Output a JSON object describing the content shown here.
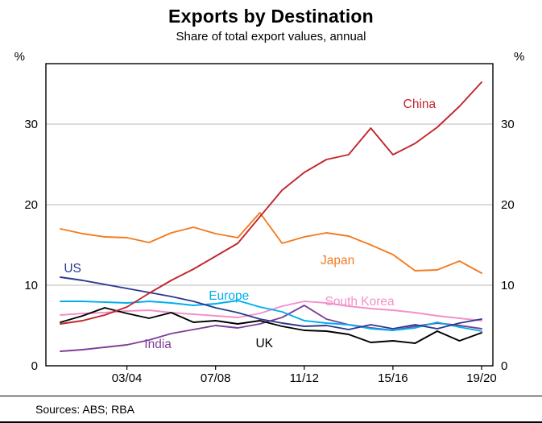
{
  "header": {
    "title": "Exports by Destination",
    "subtitle": "Share of total export values, annual"
  },
  "footer": {
    "sources": "Sources: ABS; RBA"
  },
  "chart_data": {
    "type": "line",
    "title": "Exports by Destination",
    "subtitle": "Share of total export values, annual",
    "unit_left": "%",
    "unit_right": "%",
    "ylim": [
      0,
      37.5
    ],
    "yticks": [
      0,
      10,
      20,
      30
    ],
    "grid": true,
    "grid_color": "#b9b9b9",
    "axis_color": "#000000",
    "x": [
      "00/01",
      "01/02",
      "02/03",
      "03/04",
      "04/05",
      "05/06",
      "06/07",
      "07/08",
      "08/09",
      "09/10",
      "10/11",
      "11/12",
      "12/13",
      "13/14",
      "14/15",
      "15/16",
      "16/17",
      "17/18",
      "18/19",
      "19/20"
    ],
    "x_tick_labels": [
      "03/04",
      "07/08",
      "11/12",
      "15/16",
      "19/20"
    ],
    "x_tick_indices": [
      3,
      7,
      11,
      15,
      19
    ],
    "legend_position": "inline-labels",
    "series": [
      {
        "name": "South Korea",
        "color": "#f290c9",
        "values": [
          6.3,
          6.5,
          6.6,
          6.8,
          6.9,
          6.6,
          6.4,
          6.2,
          6.0,
          6.5,
          7.4,
          8.0,
          7.8,
          7.4,
          7.1,
          6.9,
          6.6,
          6.2,
          5.9,
          5.6
        ],
        "label_pos": {
          "i": 13.5,
          "v": 7.5
        }
      },
      {
        "name": "India",
        "color": "#7d3f98",
        "values": [
          1.8,
          2.0,
          2.3,
          2.6,
          3.2,
          4.0,
          4.5,
          5.0,
          4.7,
          5.2,
          6.0,
          7.5,
          5.8,
          5.1,
          4.7,
          4.4,
          4.9,
          5.3,
          5.0,
          4.6
        ],
        "label_pos": {
          "i": 4.4,
          "v": 2.2
        }
      },
      {
        "name": "Europe",
        "color": "#00aeef",
        "values": [
          8.0,
          8.0,
          7.9,
          7.8,
          8.0,
          7.8,
          7.5,
          7.7,
          8.1,
          7.3,
          6.7,
          5.6,
          5.3,
          5.1,
          4.6,
          4.4,
          4.7,
          5.4,
          4.8,
          4.3
        ],
        "label_pos": {
          "i": 7.6,
          "v": 8.2
        }
      },
      {
        "name": "US",
        "color": "#2b3990",
        "values": [
          11.0,
          10.6,
          10.1,
          9.6,
          9.1,
          8.6,
          8.0,
          7.2,
          6.6,
          5.8,
          5.3,
          4.9,
          5.0,
          4.5,
          5.1,
          4.6,
          5.1,
          4.6,
          5.3,
          5.8
        ],
        "label_pos": {
          "i": 0.55,
          "v": 11.6
        }
      },
      {
        "name": "UK",
        "color": "#000000",
        "values": [
          5.4,
          6.2,
          7.2,
          6.5,
          5.9,
          6.6,
          5.4,
          5.6,
          5.2,
          5.6,
          4.9,
          4.4,
          4.3,
          3.9,
          2.9,
          3.1,
          2.8,
          4.3,
          3.1,
          4.1
        ],
        "label_pos": {
          "i": 9.2,
          "v": 2.3
        }
      },
      {
        "name": "Japan",
        "color": "#f47b20",
        "values": [
          17.0,
          16.4,
          16.0,
          15.9,
          15.3,
          16.5,
          17.2,
          16.4,
          15.9,
          19.0,
          15.2,
          16.0,
          16.5,
          16.1,
          15.0,
          13.8,
          11.8,
          11.9,
          13.0,
          11.5
        ],
        "label_pos": {
          "i": 12.5,
          "v": 12.6
        }
      },
      {
        "name": "China",
        "color": "#c1272d",
        "values": [
          5.2,
          5.6,
          6.3,
          7.3,
          9.0,
          10.6,
          12.0,
          13.6,
          15.2,
          18.5,
          21.8,
          24.0,
          25.6,
          26.2,
          29.5,
          26.2,
          27.6,
          29.6,
          32.2,
          35.2
        ],
        "label_pos": {
          "i": 16.2,
          "v": 32.0
        }
      }
    ]
  }
}
